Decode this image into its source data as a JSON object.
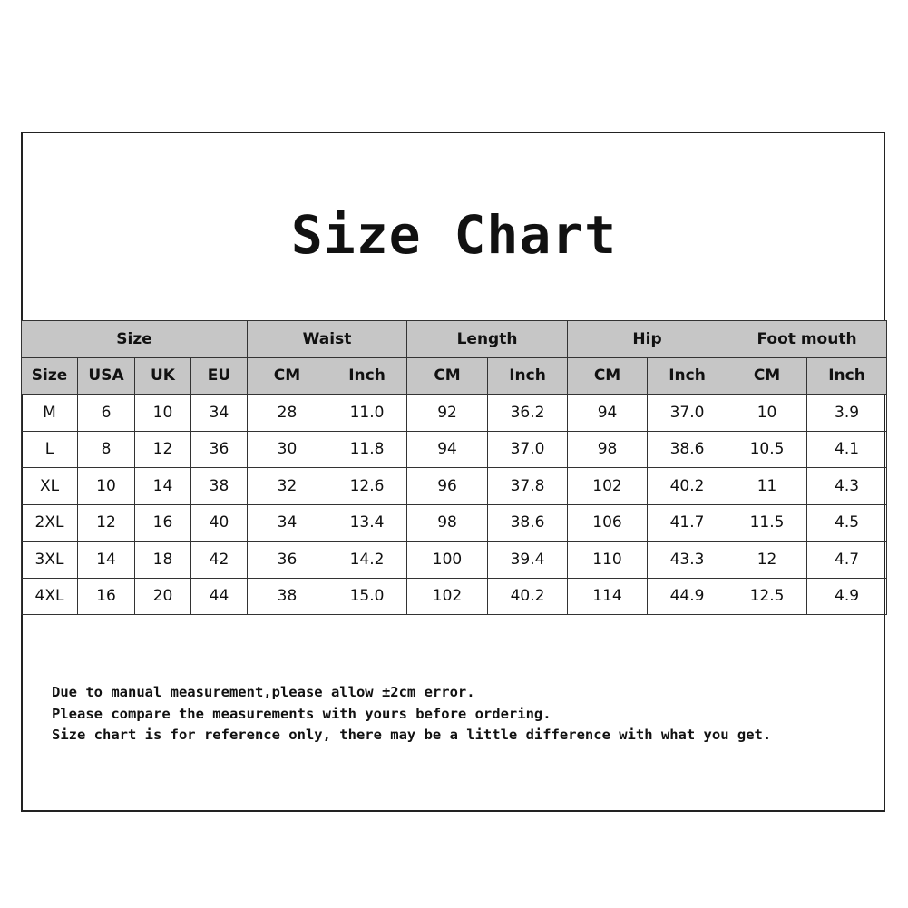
{
  "title": "Size Chart",
  "group_headers": [
    {
      "label": "Size",
      "span": 4
    },
    {
      "label": "Waist",
      "span": 2
    },
    {
      "label": "Length",
      "span": 2
    },
    {
      "label": "Hip",
      "span": 2
    },
    {
      "label": "Foot mouth",
      "span": 2
    }
  ],
  "sub_headers": [
    "Size",
    "USA",
    "UK",
    "EU",
    "CM",
    "Inch",
    "CM",
    "Inch",
    "CM",
    "Inch",
    "CM",
    "Inch"
  ],
  "rows": [
    [
      "M",
      "6",
      "10",
      "34",
      "28",
      "11.0",
      "92",
      "36.2",
      "94",
      "37.0",
      "10",
      "3.9"
    ],
    [
      "L",
      "8",
      "12",
      "36",
      "30",
      "11.8",
      "94",
      "37.0",
      "98",
      "38.6",
      "10.5",
      "4.1"
    ],
    [
      "XL",
      "10",
      "14",
      "38",
      "32",
      "12.6",
      "96",
      "37.8",
      "102",
      "40.2",
      "11",
      "4.3"
    ],
    [
      "2XL",
      "12",
      "16",
      "40",
      "34",
      "13.4",
      "98",
      "38.6",
      "106",
      "41.7",
      "11.5",
      "4.5"
    ],
    [
      "3XL",
      "14",
      "18",
      "42",
      "36",
      "14.2",
      "100",
      "39.4",
      "110",
      "43.3",
      "12",
      "4.7"
    ],
    [
      "4XL",
      "16",
      "20",
      "44",
      "38",
      "15.0",
      "102",
      "40.2",
      "114",
      "44.9",
      "12.5",
      "4.9"
    ]
  ],
  "notes": [
    "Due to manual measurement,please allow ±2cm error.",
    "Please compare the measurements with yours before ordering.",
    "Size chart is for reference only, there may be a little difference with what you get."
  ],
  "colors": {
    "header_bg": "#c6c6c6",
    "border": "#333333"
  }
}
